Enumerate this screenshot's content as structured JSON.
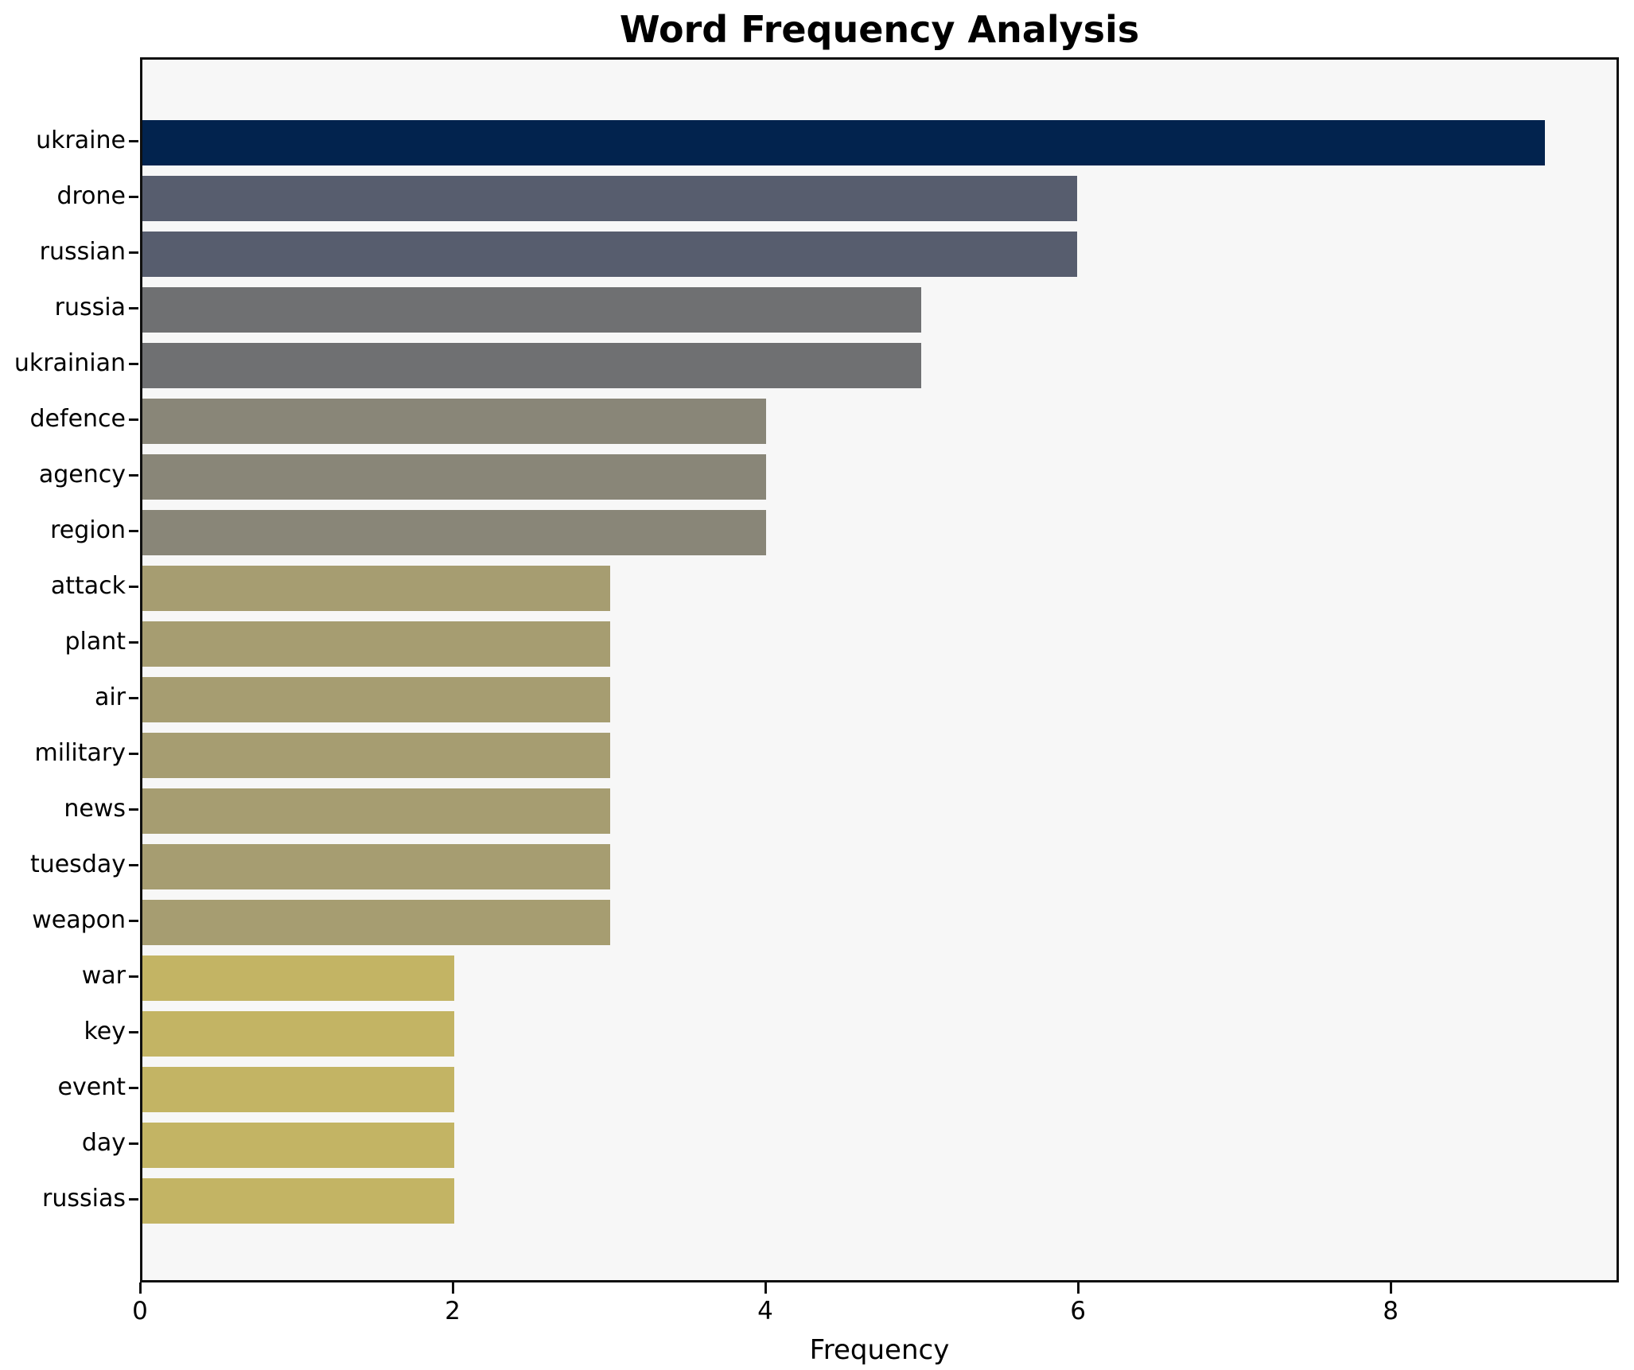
{
  "chart_data": {
    "type": "bar",
    "orientation": "horizontal",
    "title": "Word Frequency Analysis",
    "xlabel": "Frequency",
    "ylabel": "",
    "categories": [
      "ukraine",
      "drone",
      "russian",
      "russia",
      "ukrainian",
      "defence",
      "agency",
      "region",
      "attack",
      "plant",
      "air",
      "military",
      "news",
      "tuesday",
      "weapon",
      "war",
      "key",
      "event",
      "day",
      "russias"
    ],
    "values": [
      9,
      6,
      6,
      5,
      5,
      4,
      4,
      4,
      3,
      3,
      3,
      3,
      3,
      3,
      3,
      2,
      2,
      2,
      2,
      2
    ],
    "bar_colors": [
      "#02234e",
      "#575d6e",
      "#575d6e",
      "#6f7072",
      "#6f7072",
      "#898678",
      "#898678",
      "#898678",
      "#a69d71",
      "#a69d71",
      "#a69d71",
      "#a69d71",
      "#a69d71",
      "#a69d71",
      "#a69d71",
      "#c3b464",
      "#c3b464",
      "#c3b464",
      "#c3b464",
      "#c3b464"
    ],
    "xlim": [
      0,
      9.46
    ],
    "xticks": [
      0,
      2,
      4,
      6,
      8
    ],
    "grid": false,
    "legend": null,
    "plot_background": "#f7f7f7",
    "figure_background": "#ffffff",
    "axis_color": "#0f0f0f",
    "text_color": "#000000"
  }
}
